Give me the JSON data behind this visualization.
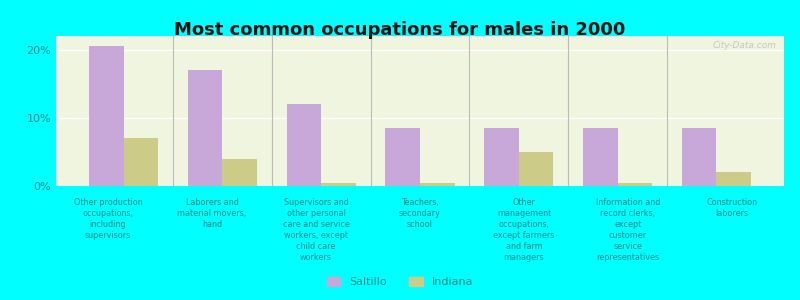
{
  "title": "Most common occupations for males in 2000",
  "background_color": "#00FFFF",
  "plot_bg_top": "#f0f5e0",
  "plot_bg_bottom": "#e8f0d0",
  "categories": [
    "Other production\noccupations,\nincluding\nsupervisors",
    "Laborers and\nmaterial movers,\nhand",
    "Supervisors and\nother personal\ncare and service\nworkers, except\nchild care\nworkers",
    "Teachers,\nsecondary\nschool",
    "Other\nmanagement\noccupations,\nexcept farmers\nand farm\nmanagers",
    "Information and\nrecord clerks,\nexcept\ncustomer\nservice\nrepresentatives",
    "Construction\nlaborers"
  ],
  "saltillo_values": [
    20.5,
    17.0,
    12.0,
    8.5,
    8.5,
    8.5,
    8.5
  ],
  "indiana_values": [
    7.0,
    4.0,
    0.5,
    0.5,
    5.0,
    0.5,
    2.0
  ],
  "saltillo_color": "#c8a8d8",
  "indiana_color": "#cccc88",
  "ylabel_ticks": [
    "0%",
    "10%",
    "20%"
  ],
  "ytick_values": [
    0,
    10,
    20
  ],
  "ylim": [
    0,
    22
  ],
  "bar_width": 0.35,
  "legend_saltillo": "Saltillo",
  "legend_indiana": "Indiana",
  "watermark": "City-Data.com",
  "label_color": "#008888",
  "title_color": "#111111"
}
